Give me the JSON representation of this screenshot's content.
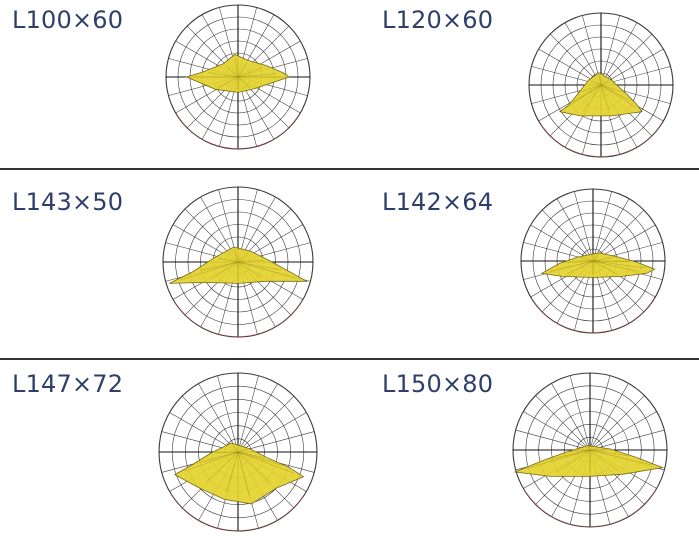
{
  "colors": {
    "label_text": "#2e3f6b",
    "divider": "#333333",
    "grid_line": "#3a3a3a",
    "axis_line": "#111111",
    "lobe_fill": "#e4d22c",
    "lobe_stroke": "#7a6a1a",
    "accent_line": "#e0555a"
  },
  "icons": {
    "polar_plot": "polar-light-distribution-diagram"
  },
  "panels": [
    {
      "label": "L100×60",
      "lobe": [
        [
          -50,
          0
        ],
        [
          -34,
          -5
        ],
        [
          -14,
          -13
        ],
        [
          -3,
          -22
        ],
        [
          10,
          -16
        ],
        [
          28,
          -11
        ],
        [
          44,
          -4
        ],
        [
          50,
          0
        ],
        [
          14,
          12
        ],
        [
          0,
          15
        ],
        [
          -22,
          12
        ]
      ]
    },
    {
      "label": "L120×60",
      "lobe": [
        [
          -40,
          26
        ],
        [
          -32,
          20
        ],
        [
          -22,
          8
        ],
        [
          -12,
          -5
        ],
        [
          -2,
          -12
        ],
        [
          10,
          -5
        ],
        [
          24,
          8
        ],
        [
          34,
          18
        ],
        [
          40,
          26
        ],
        [
          10,
          30
        ],
        [
          -20,
          30
        ]
      ]
    },
    {
      "label": "L143×50",
      "lobe": [
        [
          -64,
          20
        ],
        [
          -42,
          9
        ],
        [
          -22,
          -4
        ],
        [
          -4,
          -14
        ],
        [
          12,
          -10
        ],
        [
          28,
          -2
        ],
        [
          48,
          9
        ],
        [
          64,
          18
        ],
        [
          26,
          18
        ],
        [
          0,
          20
        ],
        [
          -30,
          19
        ]
      ]
    },
    {
      "label": "L142×64",
      "lobe": [
        [
          -50,
          12
        ],
        [
          -32,
          2
        ],
        [
          -14,
          -4
        ],
        [
          6,
          -8
        ],
        [
          24,
          -4
        ],
        [
          42,
          1
        ],
        [
          60,
          8
        ],
        [
          52,
          12
        ],
        [
          28,
          15
        ],
        [
          0,
          16
        ],
        [
          -30,
          15
        ]
      ]
    },
    {
      "label": "L147×72",
      "lobe": [
        [
          -56,
          20
        ],
        [
          -40,
          11
        ],
        [
          -24,
          1
        ],
        [
          -6,
          -8
        ],
        [
          10,
          -3
        ],
        [
          28,
          6
        ],
        [
          46,
          14
        ],
        [
          58,
          22
        ],
        [
          34,
          32
        ],
        [
          12,
          46
        ],
        [
          -12,
          42
        ],
        [
          -34,
          32
        ]
      ]
    },
    {
      "label": "L150×80",
      "lobe": [
        [
          -68,
          20
        ],
        [
          -44,
          10
        ],
        [
          -22,
          2
        ],
        [
          -2,
          -4
        ],
        [
          18,
          -1
        ],
        [
          40,
          6
        ],
        [
          66,
          16
        ],
        [
          30,
          22
        ],
        [
          0,
          24
        ],
        [
          -36,
          24
        ]
      ]
    }
  ]
}
